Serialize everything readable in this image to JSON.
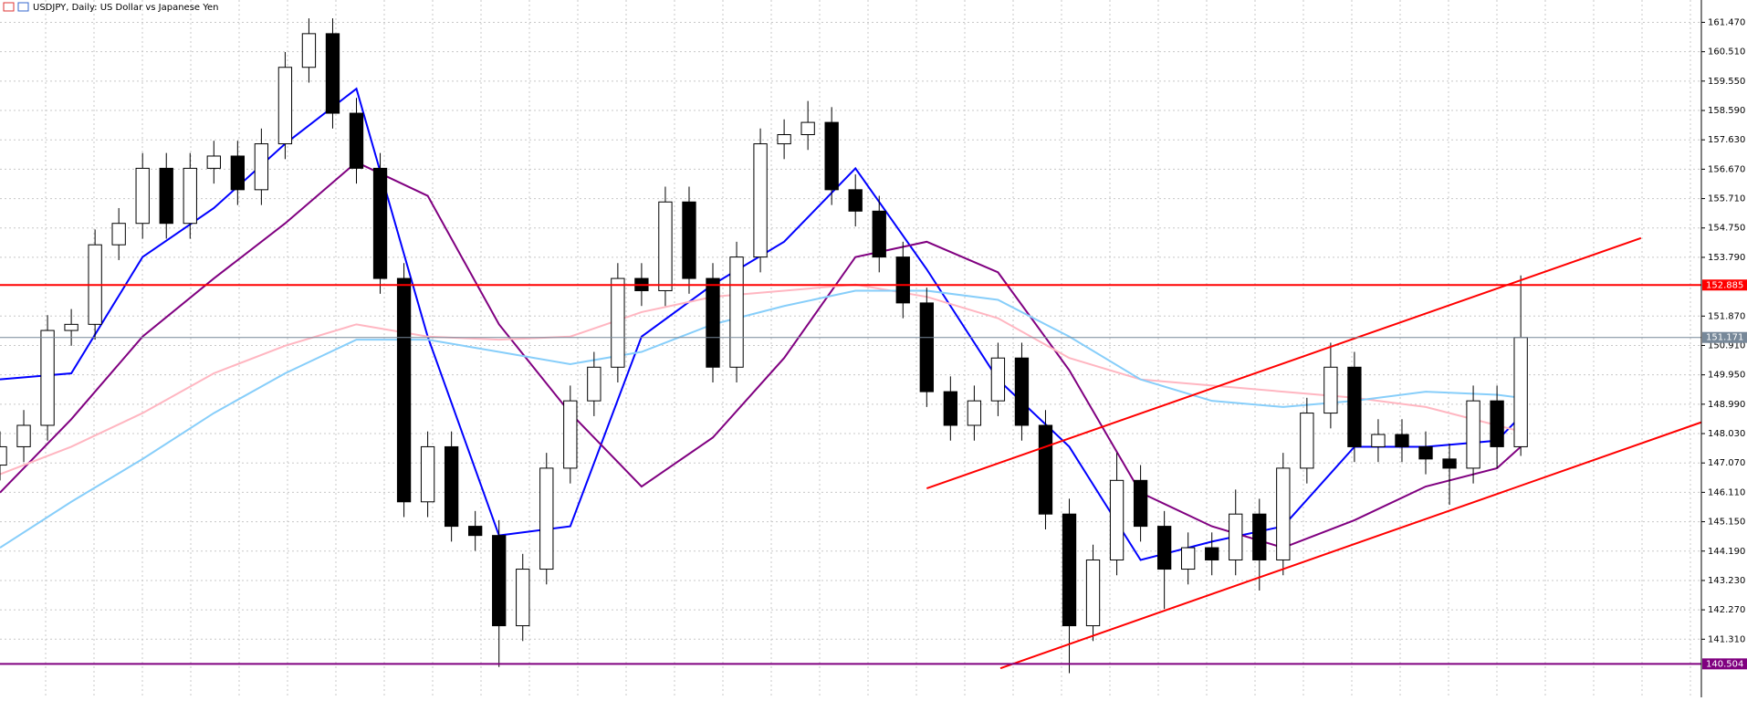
{
  "chart_data": {
    "type": "candlestick",
    "title": "USDJPY, Daily:  US Dollar vs Japanese Yen",
    "open": [
      147.0,
      147.6,
      148.3,
      151.4,
      151.6,
      154.2,
      154.9,
      156.7,
      154.9,
      156.7,
      157.1,
      156.0,
      157.5,
      160.0,
      161.1,
      158.5,
      156.7,
      153.1,
      145.8,
      147.6,
      145.0,
      144.7,
      141.75,
      143.6,
      146.9,
      149.1,
      150.2,
      153.1,
      152.7,
      155.6,
      153.1,
      150.2,
      153.8,
      157.5,
      157.8,
      158.2,
      156.0,
      155.3,
      153.8,
      152.3,
      149.4,
      148.3,
      149.1,
      150.5,
      148.3,
      145.4,
      141.75,
      143.9,
      146.5,
      145.0,
      143.6,
      144.3,
      143.9,
      145.4,
      143.9,
      146.9,
      148.7,
      150.2,
      147.6,
      148.0,
      147.6,
      147.2,
      146.9,
      149.1,
      147.6
    ],
    "high": [
      148.1,
      148.8,
      151.9,
      152.1,
      154.7,
      155.4,
      157.2,
      157.2,
      157.2,
      157.6,
      157.6,
      158.0,
      160.5,
      161.6,
      161.6,
      159.0,
      157.2,
      153.6,
      148.1,
      148.1,
      145.5,
      145.2,
      144.1,
      147.4,
      149.6,
      150.7,
      153.6,
      153.6,
      156.1,
      156.1,
      153.6,
      154.3,
      158.0,
      158.3,
      158.9,
      158.7,
      156.5,
      155.8,
      154.3,
      152.8,
      149.9,
      149.6,
      151.0,
      151.0,
      148.8,
      145.9,
      144.4,
      147.4,
      147.0,
      145.5,
      144.8,
      144.8,
      146.2,
      145.9,
      147.4,
      149.2,
      151.0,
      150.7,
      148.5,
      148.5,
      148.1,
      147.7,
      149.6,
      149.6,
      153.2
    ],
    "low": [
      146.5,
      147.1,
      147.8,
      150.9,
      151.1,
      153.7,
      154.4,
      154.4,
      154.4,
      156.2,
      155.5,
      155.5,
      157.0,
      159.5,
      158.0,
      156.2,
      152.6,
      145.3,
      145.3,
      144.5,
      144.2,
      140.4,
      141.25,
      143.1,
      146.4,
      148.6,
      149.7,
      152.2,
      152.2,
      152.6,
      149.7,
      149.7,
      153.3,
      157.0,
      157.3,
      155.5,
      154.8,
      153.3,
      151.8,
      148.9,
      147.8,
      147.8,
      148.6,
      147.8,
      144.9,
      140.2,
      141.25,
      143.4,
      144.5,
      142.3,
      143.1,
      143.4,
      143.4,
      142.9,
      143.4,
      146.4,
      148.2,
      147.1,
      147.1,
      147.1,
      146.7,
      145.7,
      146.4,
      146.9,
      147.3
    ],
    "close": [
      147.6,
      148.3,
      151.4,
      151.6,
      154.2,
      154.9,
      156.7,
      154.9,
      156.7,
      157.1,
      156.0,
      157.5,
      160.0,
      161.1,
      158.5,
      156.7,
      153.1,
      145.8,
      147.6,
      145.0,
      144.7,
      141.75,
      143.6,
      146.9,
      149.1,
      150.2,
      153.1,
      152.7,
      155.6,
      153.1,
      150.2,
      153.8,
      157.5,
      157.8,
      158.2,
      156.0,
      155.3,
      153.8,
      152.3,
      149.4,
      148.3,
      149.1,
      150.5,
      148.3,
      145.4,
      141.75,
      143.9,
      146.5,
      145.0,
      143.6,
      144.3,
      143.9,
      145.4,
      143.9,
      146.9,
      148.7,
      150.2,
      147.6,
      148.0,
      147.6,
      147.2,
      146.9,
      149.1,
      147.6,
      151.171
    ],
    "overlays": [
      {
        "color": "#0000ff",
        "x": [
          0,
          3,
          6,
          9,
          12,
          15,
          18,
          21,
          24,
          27,
          30,
          33,
          36,
          39,
          42,
          45,
          48,
          51,
          54,
          57,
          60,
          63,
          64
        ],
        "values": [
          149.8,
          150.0,
          153.8,
          155.4,
          157.5,
          159.3,
          151.2,
          144.7,
          145.0,
          151.2,
          152.9,
          154.3,
          156.7,
          153.4,
          149.8,
          147.6,
          143.9,
          144.5,
          145.0,
          147.6,
          147.6,
          147.8,
          148.6
        ]
      },
      {
        "color": "#800080",
        "x": [
          0,
          3,
          6,
          9,
          12,
          15,
          18,
          21,
          24,
          27,
          30,
          33,
          36,
          39,
          42,
          45,
          48,
          51,
          54,
          57,
          60,
          63,
          64
        ],
        "values": [
          146.1,
          148.5,
          151.2,
          153.1,
          154.9,
          156.9,
          155.8,
          151.6,
          148.7,
          146.3,
          147.9,
          150.5,
          153.8,
          154.3,
          153.3,
          150.1,
          146.1,
          145.0,
          144.3,
          145.2,
          146.3,
          146.9,
          147.6
        ]
      },
      {
        "color": "#ffb6c1",
        "x": [
          0,
          3,
          6,
          9,
          12,
          15,
          18,
          21,
          24,
          27,
          30,
          33,
          36,
          39,
          42,
          45,
          48,
          51,
          54,
          57,
          60,
          63,
          64
        ],
        "values": [
          146.7,
          147.6,
          148.7,
          150.0,
          150.9,
          151.6,
          151.2,
          151.1,
          151.2,
          152.0,
          152.5,
          152.7,
          152.9,
          152.5,
          151.8,
          150.5,
          149.8,
          149.6,
          149.4,
          149.2,
          148.9,
          148.3,
          148.1
        ]
      },
      {
        "color": "#87cefa",
        "x": [
          0,
          3,
          6,
          9,
          12,
          15,
          18,
          21,
          24,
          27,
          30,
          33,
          36,
          39,
          42,
          45,
          48,
          51,
          54,
          57,
          60,
          63,
          64
        ],
        "values": [
          144.3,
          145.8,
          147.2,
          148.7,
          150.0,
          151.1,
          151.1,
          150.7,
          150.3,
          150.7,
          151.6,
          152.2,
          152.7,
          152.7,
          152.4,
          151.2,
          149.8,
          149.1,
          148.9,
          149.1,
          149.4,
          149.3,
          149.2
        ]
      }
    ],
    "trendlines": [
      {
        "color": "#ff0000",
        "x": [
          39.0,
          69.06
        ],
        "y": [
          146.24,
          154.42
        ]
      },
      {
        "color": "#ff0000",
        "x": [
          42.1,
          71.6
        ],
        "y": [
          140.36,
          148.4
        ]
      }
    ],
    "levels": [
      {
        "value": 152.885,
        "color": "#ff0000"
      },
      {
        "value": 151.171,
        "color": "#778899"
      },
      {
        "value": 140.504,
        "color": "#800080"
      }
    ],
    "xlim": [
      0,
      71.6
    ],
    "ylim": [
      139.41,
      162.2
    ],
    "yticks": [
      {
        "value": 161.47,
        "label": "161.470"
      },
      {
        "value": 160.51,
        "label": "160.510"
      },
      {
        "value": 159.55,
        "label": "159.550"
      },
      {
        "value": 158.59,
        "label": "158.590"
      },
      {
        "value": 157.63,
        "label": "157.630"
      },
      {
        "value": 156.67,
        "label": "156.670"
      },
      {
        "value": 155.71,
        "label": "155.710"
      },
      {
        "value": 154.75,
        "label": "154.750"
      },
      {
        "value": 153.79,
        "label": "153.790"
      },
      {
        "value": 151.87,
        "label": "151.870"
      },
      {
        "value": 150.91,
        "label": "150.910"
      },
      {
        "value": 149.95,
        "label": "149.950"
      },
      {
        "value": 148.99,
        "label": "148.990"
      },
      {
        "value": 148.03,
        "label": "148.030"
      },
      {
        "value": 147.07,
        "label": "147.070"
      },
      {
        "value": 146.11,
        "label": "146.110"
      },
      {
        "value": 145.15,
        "label": "145.150"
      },
      {
        "value": 144.19,
        "label": "144.190"
      },
      {
        "value": 143.23,
        "label": "143.230"
      },
      {
        "value": 142.27,
        "label": "142.270"
      },
      {
        "value": 141.31,
        "label": "141.310"
      }
    ],
    "grid": true,
    "bull_color": "#ffffff",
    "bear_color": "#000000"
  }
}
